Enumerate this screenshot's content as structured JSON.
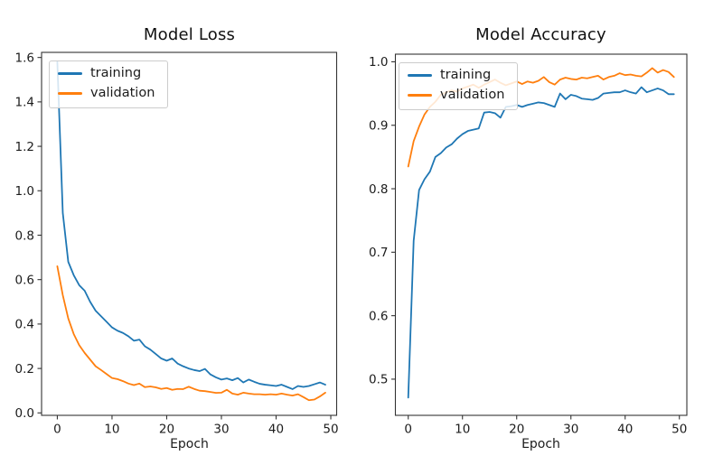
{
  "figure": {
    "background": "#ffffff"
  },
  "chart_data": [
    {
      "type": "line",
      "title": "Model Loss",
      "xlabel": "Epoch",
      "grid": false,
      "legend_position": "upper left",
      "xlim": [
        -2.88,
        51.07
      ],
      "ylim": [
        -0.011,
        1.623
      ],
      "xticks": {
        "values": [
          0,
          10,
          20,
          30,
          40,
          50
        ],
        "labels": [
          "0",
          "10",
          "20",
          "30",
          "40",
          "50"
        ]
      },
      "yticks": {
        "values": [
          0.0,
          0.2,
          0.4,
          0.6,
          0.8,
          1.0,
          1.2,
          1.4,
          1.6
        ],
        "labels": [
          "0.0",
          "0.2",
          "0.4",
          "0.6",
          "0.8",
          "1.0",
          "1.2",
          "1.4",
          "1.6"
        ]
      },
      "x": [
        0,
        1,
        2,
        3,
        4,
        5,
        6,
        7,
        8,
        9,
        10,
        11,
        12,
        13,
        14,
        15,
        16,
        17,
        18,
        19,
        20,
        21,
        22,
        23,
        24,
        25,
        26,
        27,
        28,
        29,
        30,
        31,
        32,
        33,
        34,
        35,
        36,
        37,
        38,
        39,
        40,
        41,
        42,
        43,
        44,
        45,
        46,
        47,
        48,
        49
      ],
      "series": [
        {
          "name": "training",
          "color": "#1f77b4",
          "values": [
            1.58,
            0.9,
            0.68,
            0.62,
            0.575,
            0.55,
            0.5,
            0.46,
            0.435,
            0.41,
            0.385,
            0.37,
            0.36,
            0.345,
            0.325,
            0.33,
            0.3,
            0.285,
            0.265,
            0.245,
            0.235,
            0.245,
            0.222,
            0.21,
            0.2,
            0.193,
            0.188,
            0.198,
            0.173,
            0.16,
            0.15,
            0.155,
            0.147,
            0.157,
            0.137,
            0.15,
            0.14,
            0.131,
            0.127,
            0.124,
            0.121,
            0.127,
            0.117,
            0.107,
            0.121,
            0.117,
            0.121,
            0.129,
            0.137,
            0.127
          ]
        },
        {
          "name": "validation",
          "color": "#ff7f0e",
          "values": [
            0.66,
            0.53,
            0.425,
            0.355,
            0.305,
            0.27,
            0.24,
            0.21,
            0.193,
            0.175,
            0.157,
            0.152,
            0.143,
            0.132,
            0.125,
            0.132,
            0.116,
            0.119,
            0.115,
            0.108,
            0.112,
            0.104,
            0.108,
            0.107,
            0.118,
            0.108,
            0.1,
            0.098,
            0.094,
            0.09,
            0.091,
            0.104,
            0.087,
            0.082,
            0.091,
            0.087,
            0.084,
            0.084,
            0.082,
            0.084,
            0.082,
            0.087,
            0.082,
            0.078,
            0.084,
            0.071,
            0.057,
            0.06,
            0.074,
            0.091
          ]
        }
      ]
    },
    {
      "type": "line",
      "title": "Model Accuracy",
      "xlabel": "Epoch",
      "grid": false,
      "legend_position": "upper left",
      "xlim": [
        -2.37,
        51.38
      ],
      "ylim": [
        0.443,
        1.012
      ],
      "xticks": {
        "values": [
          0,
          10,
          20,
          30,
          40,
          50
        ],
        "labels": [
          "0",
          "10",
          "20",
          "30",
          "40",
          "50"
        ]
      },
      "yticks": {
        "values": [
          0.5,
          0.6,
          0.7,
          0.8,
          0.9,
          1.0
        ],
        "labels": [
          "0.5",
          "0.6",
          "0.7",
          "0.8",
          "0.9",
          "1.0"
        ]
      },
      "x": [
        0,
        1,
        2,
        3,
        4,
        5,
        6,
        7,
        8,
        9,
        10,
        11,
        12,
        13,
        14,
        15,
        16,
        17,
        18,
        19,
        20,
        21,
        22,
        23,
        24,
        25,
        26,
        27,
        28,
        29,
        30,
        31,
        32,
        33,
        34,
        35,
        36,
        37,
        38,
        39,
        40,
        41,
        42,
        43,
        44,
        45,
        46,
        47,
        48,
        49
      ],
      "series": [
        {
          "name": "training",
          "color": "#1f77b4",
          "values": [
            0.471,
            0.718,
            0.798,
            0.815,
            0.827,
            0.85,
            0.856,
            0.865,
            0.87,
            0.879,
            0.886,
            0.891,
            0.893,
            0.895,
            0.92,
            0.921,
            0.919,
            0.912,
            0.929,
            0.93,
            0.932,
            0.929,
            0.932,
            0.934,
            0.936,
            0.935,
            0.932,
            0.929,
            0.95,
            0.941,
            0.948,
            0.946,
            0.942,
            0.941,
            0.94,
            0.943,
            0.95,
            0.951,
            0.952,
            0.952,
            0.955,
            0.952,
            0.95,
            0.96,
            0.952,
            0.955,
            0.958,
            0.955,
            0.949,
            0.949
          ]
        },
        {
          "name": "validation",
          "color": "#ff7f0e",
          "values": [
            0.835,
            0.875,
            0.898,
            0.917,
            0.929,
            0.937,
            0.948,
            0.952,
            0.955,
            0.953,
            0.958,
            0.961,
            0.964,
            0.959,
            0.964,
            0.968,
            0.972,
            0.967,
            0.963,
            0.966,
            0.969,
            0.965,
            0.969,
            0.967,
            0.97,
            0.976,
            0.968,
            0.964,
            0.972,
            0.975,
            0.973,
            0.972,
            0.975,
            0.974,
            0.976,
            0.978,
            0.972,
            0.976,
            0.978,
            0.982,
            0.979,
            0.98,
            0.978,
            0.977,
            0.983,
            0.99,
            0.983,
            0.987,
            0.984,
            0.976
          ]
        }
      ]
    }
  ]
}
